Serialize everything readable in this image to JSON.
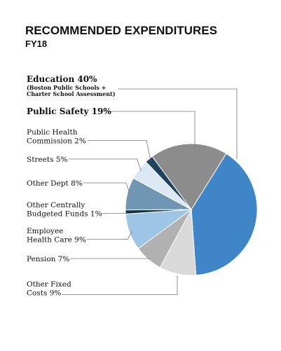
{
  "chart_data": {
    "type": "pie",
    "title": "RECOMMENDED EXPENDITURES",
    "subtitle": "FY18",
    "slices": [
      {
        "key": "education",
        "lines": [
          "Education 40%"
        ],
        "note_lines": [
          "(Boston Public Schools +",
          "Charter School Assessment)"
        ],
        "value": 40,
        "color": "#3f86c9",
        "emphasis": true
      },
      {
        "key": "other-fixed-costs",
        "lines": [
          "Other Fixed",
          "Costs 9%"
        ],
        "value": 9,
        "color": "#d9d9d9"
      },
      {
        "key": "pension",
        "lines": [
          "Pension 7%"
        ],
        "value": 7,
        "color": "#b1b1b1"
      },
      {
        "key": "employee-health-care",
        "lines": [
          "Employee",
          "Health Care 9%"
        ],
        "value": 9,
        "color": "#9dc6e6"
      },
      {
        "key": "other-centrally-budgeted-funds",
        "lines": [
          "Other Centrally",
          "Budgeted Funds 1%"
        ],
        "value": 1,
        "color": "#16334a"
      },
      {
        "key": "other-dept",
        "lines": [
          "Other Dept 8%"
        ],
        "value": 8,
        "color": "#6f97b4"
      },
      {
        "key": "streets",
        "lines": [
          "Streets 5%"
        ],
        "value": 5,
        "color": "#dce8f5"
      },
      {
        "key": "public-health-commission",
        "lines": [
          "Public Health",
          "Commission 2%"
        ],
        "value": 2,
        "color": "#1d435e"
      },
      {
        "key": "public-safety",
        "lines": [
          "Public Safety 19%"
        ],
        "value": 19,
        "color": "#8c8c8c",
        "emphasis": true
      }
    ]
  }
}
